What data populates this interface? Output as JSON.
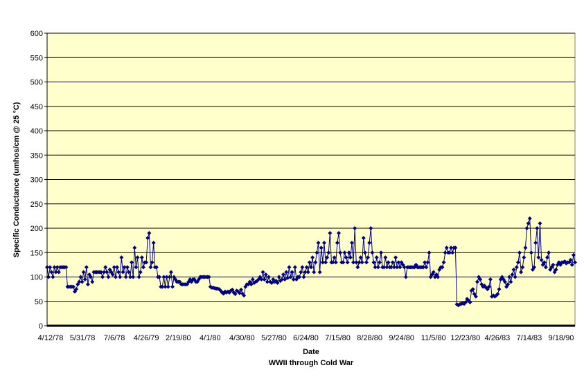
{
  "chart_data": {
    "type": "line",
    "title": "",
    "xlabel": "Date",
    "x_subtitle": "WWII through Cold War",
    "ylabel": "Specific Conductance (umhos/cm @ 25 °C)",
    "ylim": [
      0,
      600
    ],
    "yticks": [
      0,
      50,
      100,
      150,
      200,
      250,
      300,
      350,
      400,
      450,
      500,
      550,
      600
    ],
    "xtick_labels": [
      "4/12/78",
      "5/31/78",
      "7/6/78",
      "4/26/79",
      "2/19/80",
      "4/1/80",
      "4/30/80",
      "5/27/80",
      "6/24/80",
      "7/15/80",
      "8/28/80",
      "9/24/80",
      "11/5/80",
      "12/23/80",
      "4/26/83",
      "7/14/83",
      "9/18/90"
    ],
    "grid": true,
    "legend": "none",
    "colors": {
      "plot_bg": "#FFFFCC",
      "series": "#000080",
      "grid": "#000000"
    },
    "series": [
      {
        "values": [
          120,
          100,
          120,
          110,
          100,
          120,
          110,
          120,
          110,
          120,
          120,
          120,
          120,
          120,
          80,
          80,
          80,
          80,
          80,
          70,
          75,
          85,
          90,
          100,
          90,
          110,
          95,
          120,
          85,
          105,
          100,
          90,
          110,
          110,
          110,
          110,
          110,
          110,
          100,
          110,
          120,
          110,
          100,
          115,
          110,
          105,
          120,
          100,
          120,
          110,
          100,
          140,
          110,
          120,
          100,
          120,
          110,
          100,
          130,
          100,
          160,
          120,
          140,
          100,
          110,
          140,
          120,
          130,
          130,
          180,
          190,
          120,
          130,
          170,
          120,
          120,
          100,
          100,
          80,
          80,
          100,
          80,
          100,
          80,
          100,
          110,
          80,
          100,
          95,
          90,
          90,
          90,
          85,
          85,
          85,
          85,
          85,
          90,
          95,
          90,
          95,
          95,
          90,
          90,
          95,
          100,
          100,
          100,
          100,
          100,
          100,
          100,
          80,
          78,
          78,
          77,
          76,
          76,
          75,
          72,
          68,
          66,
          70,
          68,
          70,
          68,
          72,
          74,
          68,
          65,
          72,
          70,
          67,
          74,
          66,
          62,
          80,
          85,
          85,
          90,
          85,
          95,
          88,
          90,
          92,
          95,
          100,
          95,
          110,
          95,
          105,
          90,
          100,
          90,
          88,
          95,
          90,
          92,
          88,
          100,
          92,
          95,
          105,
          95,
          110,
          98,
          120,
          100,
          110,
          95,
          120,
          95,
          100,
          100,
          110,
          120,
          100,
          110,
          120,
          110,
          130,
          120,
          140,
          110,
          130,
          150,
          170,
          110,
          160,
          130,
          170,
          130,
          140,
          150,
          190,
          130,
          130,
          140,
          130,
          170,
          190,
          150,
          130,
          130,
          150,
          140,
          130,
          150,
          140,
          170,
          130,
          200,
          130,
          120,
          130,
          140,
          130,
          180,
          150,
          130,
          140,
          170,
          200,
          150,
          130,
          120,
          140,
          120,
          130,
          150,
          120,
          120,
          140,
          120,
          130,
          120,
          120,
          130,
          120,
          140,
          120,
          130,
          120,
          130,
          125,
          120,
          100,
          120,
          120,
          120,
          120,
          120,
          120,
          125,
          120,
          120,
          120,
          120,
          120,
          130,
          120,
          130,
          150,
          100,
          105,
          110,
          100,
          105,
          100,
          115,
          120,
          120,
          130,
          150,
          160,
          150,
          150,
          160,
          150,
          160,
          160,
          44,
          42,
          44,
          45,
          46,
          45,
          48,
          55,
          52,
          48,
          72,
          75,
          65,
          60,
          90,
          100,
          95,
          85,
          80,
          82,
          78,
          75,
          80,
          95,
          60,
          62,
          60,
          62,
          65,
          75,
          95,
          100,
          95,
          90,
          80,
          85,
          100,
          90,
          105,
          115,
          100,
          120,
          130,
          150,
          110,
          120,
          140,
          160,
          200,
          210,
          220,
          150,
          115,
          120,
          170,
          200,
          140,
          210,
          135,
          125,
          130,
          120,
          140,
          150,
          115,
          120,
          125,
          110,
          115,
          125,
          130,
          125,
          130,
          130,
          132,
          128,
          130,
          130,
          135,
          125,
          145,
          130
        ]
      }
    ]
  }
}
